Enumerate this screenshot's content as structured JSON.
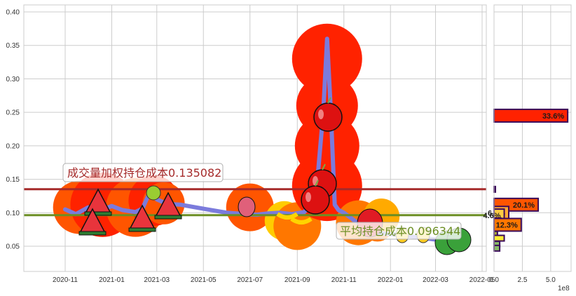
{
  "chart_data": [
    {
      "type": "line",
      "title": "",
      "xlabel": "",
      "ylabel": "",
      "ylim": [
        0.01,
        0.41
      ],
      "grid": true,
      "x_tick_labels": [
        "2020-11",
        "2021-01",
        "2021-03",
        "2021-05",
        "2021-07",
        "2021-09",
        "2021-11",
        "2022-01",
        "2022-03",
        "2022-05"
      ],
      "y_tick_labels": [
        "0.05",
        "0.10",
        "0.15",
        "0.20",
        "0.25",
        "0.30",
        "0.35",
        "0.40"
      ],
      "series": [
        {
          "name": "price",
          "color": "#7b7bdc",
          "x": [
            "2020-11-01",
            "2020-11-15",
            "2020-12-01",
            "2020-12-15",
            "2021-01-01",
            "2021-01-15",
            "2021-02-01",
            "2021-02-10",
            "2021-02-20",
            "2021-03-01",
            "2021-03-15",
            "2021-04-01",
            "2021-05-01",
            "2021-06-01",
            "2021-06-25",
            "2021-07-10",
            "2021-07-25",
            "2021-08-10",
            "2021-08-25",
            "2021-09-10",
            "2021-09-25",
            "2021-10-05",
            "2021-10-10",
            "2021-10-15",
            "2021-10-20",
            "2021-10-25",
            "2021-11-01",
            "2021-11-15",
            "2021-12-01",
            "2021-12-15",
            "2022-01-01",
            "2022-01-15",
            "2022-02-01",
            "2022-02-15",
            "2022-03-01",
            "2022-03-15",
            "2022-04-01"
          ],
          "values": [
            0.105,
            0.098,
            0.108,
            0.102,
            0.11,
            0.104,
            0.101,
            0.106,
            0.131,
            0.12,
            0.113,
            0.112,
            0.106,
            0.1,
            0.098,
            0.097,
            0.099,
            0.1,
            0.098,
            0.101,
            0.118,
            0.25,
            0.36,
            0.25,
            0.112,
            0.104,
            0.1,
            0.088,
            0.075,
            0.07,
            0.068,
            0.066,
            0.064,
            0.062,
            0.06,
            0.058,
            0.057
          ]
        }
      ],
      "hlines": [
        {
          "label": "成交量加权持仓成本0.135082",
          "value": 0.135082,
          "color": "#a52a2a"
        },
        {
          "label": "平均持仓成本0.096344",
          "value": 0.096344,
          "color": "#6b8e23"
        }
      ],
      "annotations": [
        {
          "text": "成交量加权持仓成本0.135082",
          "x": "2020-11",
          "y": 0.15
        },
        {
          "text": "平均持仓成本0.096344",
          "x": "2021-11",
          "y": 0.068
        }
      ]
    },
    {
      "type": "bar",
      "orientation": "horizontal",
      "xlabel": "",
      "x_unit": "1e8",
      "x_tick_labels": [
        "0.0",
        "2.5",
        "5.0"
      ],
      "xlim": [
        0,
        6.8
      ],
      "bars": [
        {
          "y": 0.245,
          "value": 6.5,
          "label": "33.6%",
          "color": "#ff2200"
        },
        {
          "y": 0.135,
          "value": 0.1,
          "label": "",
          "color": "#ff5500"
        },
        {
          "y": 0.112,
          "value": 3.9,
          "label": "20.1%",
          "color": "#ff5500"
        },
        {
          "y": 0.1,
          "value": 1.3,
          "label": "6.6%",
          "color": "#ffaa33"
        },
        {
          "y": 0.096,
          "value": 0.9,
          "label": "4.6%",
          "color": "#ffcc44"
        },
        {
          "y": 0.088,
          "value": 0.6,
          "label": "",
          "color": "#99cc66"
        },
        {
          "y": 0.082,
          "value": 2.4,
          "label": "12.3%",
          "color": "#ff7700"
        },
        {
          "y": 0.068,
          "value": 0.3,
          "label": "",
          "color": "#aaaa33"
        },
        {
          "y": 0.062,
          "value": 0.9,
          "label": "",
          "color": "#ffee33"
        },
        {
          "y": 0.053,
          "value": 0.5,
          "label": "",
          "color": "#88bb66"
        },
        {
          "y": 0.047,
          "value": 0.5,
          "label": "",
          "color": "#88bb66"
        }
      ]
    }
  ],
  "labels": {
    "annotation_vwap": "成交量加权持仓成本0.135082",
    "annotation_avg": "平均持仓成本0.096344",
    "offset_text": "1e8"
  },
  "colors": {
    "price_line": "#7b7bdc",
    "vwap_line": "#a52a2a",
    "avg_line": "#6b8e23",
    "blob_red": "#ff2200",
    "blob_orange": "#ff5500",
    "bar_edge": "#3a0a5a"
  }
}
